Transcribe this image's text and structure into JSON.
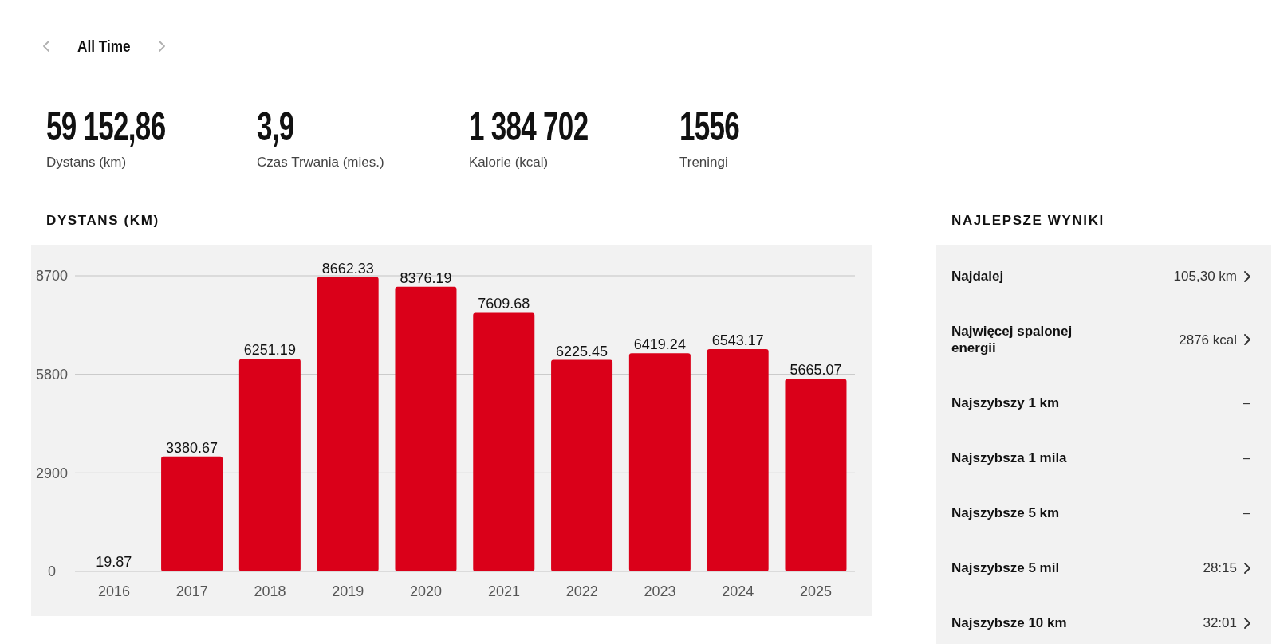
{
  "chart_data": [
    {
      "type": "other",
      "title": "All Time",
      "categories": [
        "Dystans (km)",
        "Czas Trwania (mies.)",
        "Kalorie (kcal)",
        "Treningi"
      ],
      "value_labels": [
        "59 152,86",
        "3,9",
        "1 384 702",
        "1556"
      ]
    },
    {
      "type": "bar",
      "title": "DYSTANS (KM)",
      "categories": [
        "2016",
        "2017",
        "2018",
        "2019",
        "2020",
        "2021",
        "2022",
        "2023",
        "2024",
        "2025"
      ],
      "values": [
        19.87,
        3380.67,
        6251.19,
        8662.33,
        8376.19,
        7609.68,
        6225.45,
        6419.24,
        6543.17,
        5665.07
      ],
      "color": "#da0019",
      "ylim": [
        0,
        8700
      ],
      "yticks": [
        0,
        2900,
        5800,
        8700
      ],
      "grid": "y",
      "data_labels": true
    },
    {
      "type": "other",
      "title": "NAJLEPSZE WYNIKI",
      "categories": [
        "Najdalej",
        "Najwięcej spalonej energii",
        "Najszybszy 1 km",
        "Najszybsza 1 mila",
        "Najszybsze 5 km",
        "Najszybsze 5 mil",
        "Najszybsze 10 km"
      ],
      "value_labels": [
        "105,30 km",
        "2876 kcal",
        "–",
        "–",
        "–",
        "28:15",
        "32:01"
      ]
    }
  ]
}
